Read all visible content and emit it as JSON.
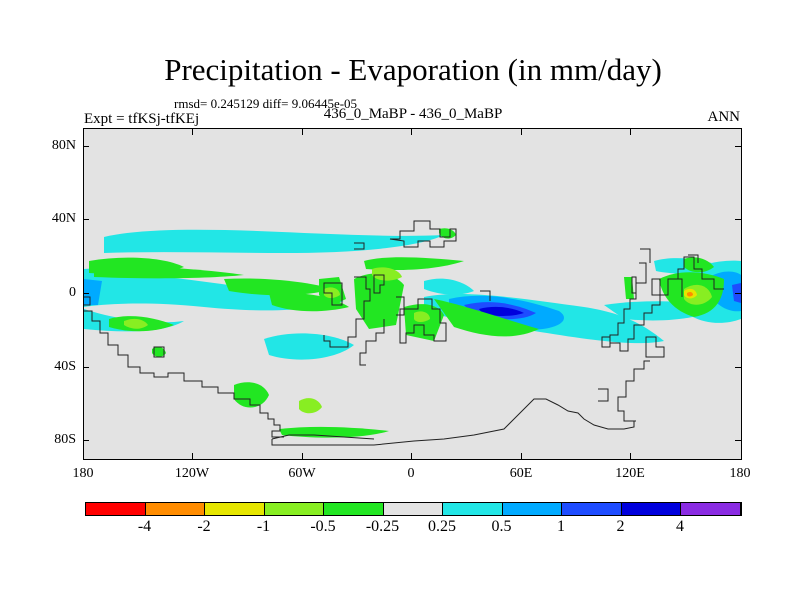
{
  "title": "Precipitation - Evaporation (in mm/day)",
  "stats_text": "rmsd= 0.245129 diff= 9.06445e-05",
  "left_label": "Expt = tfKSj-tfKEj",
  "center_label": "436_0_MaBP - 436_0_MaBP",
  "right_label": "ANN",
  "map": {
    "lat_labels": [
      "80N",
      "40N",
      "0",
      "40S",
      "80S"
    ],
    "lon_labels": [
      "180",
      "120W",
      "60W",
      "0",
      "60E",
      "120E",
      "180"
    ],
    "background_color": "#e3e3e3"
  },
  "colorbar": {
    "colors": [
      "#ff0000",
      "#ff8c00",
      "#e6e600",
      "#88ee22",
      "#22e622",
      "#e3e3e3",
      "#22e6e6",
      "#00aaff",
      "#1e4cff",
      "#0000dd",
      "#8a2be2"
    ],
    "labels": [
      "-4",
      "-2",
      "-1",
      "-0.5",
      "-0.25",
      "0.25",
      "0.5",
      "1",
      "2",
      "4"
    ]
  }
}
